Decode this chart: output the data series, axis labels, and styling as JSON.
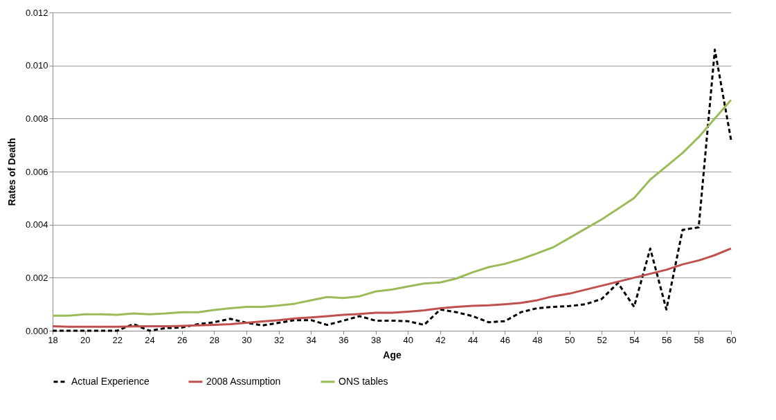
{
  "chart_data": {
    "type": "line",
    "xlabel": "Age",
    "ylabel": "Rates of Death",
    "x": [
      18,
      19,
      20,
      21,
      22,
      23,
      24,
      25,
      26,
      27,
      28,
      29,
      30,
      31,
      32,
      33,
      34,
      35,
      36,
      37,
      38,
      39,
      40,
      41,
      42,
      43,
      44,
      45,
      46,
      47,
      48,
      49,
      50,
      51,
      52,
      53,
      54,
      55,
      56,
      57,
      58,
      59,
      60
    ],
    "series": [
      {
        "name": "Actual Experience",
        "color": "#000000",
        "line_style": "dashed",
        "values": [
          0,
          0,
          0,
          0,
          0,
          0.00025,
          0,
          0.0001,
          0.00012,
          0.00025,
          0.00032,
          0.00045,
          0.0003,
          0.0002,
          0.0003,
          0.0004,
          0.0004,
          0.00022,
          0.00038,
          0.00055,
          0.00038,
          0.00038,
          0.00036,
          0.00022,
          0.0008,
          0.0007,
          0.00055,
          0.00032,
          0.00036,
          0.0007,
          0.00085,
          0.0009,
          0.00093,
          0.001,
          0.0012,
          0.0018,
          0.0009,
          0.0031,
          0.0008,
          0.0038,
          0.0039,
          0.0106,
          0.0072
        ]
      },
      {
        "name": "2008 Assumption",
        "color": "#c0504d",
        "line_style": "solid",
        "values": [
          0.00017,
          0.00015,
          0.00015,
          0.00015,
          0.00015,
          0.00016,
          0.00017,
          0.00017,
          0.00018,
          0.0002,
          0.00022,
          0.00025,
          0.0003,
          0.00035,
          0.0004,
          0.00046,
          0.0005,
          0.00055,
          0.0006,
          0.00063,
          0.00068,
          0.00068,
          0.00072,
          0.00077,
          0.00085,
          0.0009,
          0.00094,
          0.00096,
          0.001,
          0.00105,
          0.00115,
          0.0013,
          0.0014,
          0.00155,
          0.0017,
          0.00185,
          0.002,
          0.00215,
          0.0023,
          0.0025,
          0.00265,
          0.00285,
          0.0031
        ]
      },
      {
        "name": "ONS tables",
        "color": "#9bbb59",
        "line_style": "solid",
        "values": [
          0.00057,
          0.00057,
          0.00062,
          0.00062,
          0.0006,
          0.00065,
          0.00062,
          0.00065,
          0.0007,
          0.0007,
          0.00078,
          0.00085,
          0.0009,
          0.0009,
          0.00095,
          0.00102,
          0.00115,
          0.00127,
          0.00123,
          0.0013,
          0.00148,
          0.00155,
          0.00167,
          0.00178,
          0.00182,
          0.00197,
          0.0022,
          0.0024,
          0.00252,
          0.0027,
          0.00292,
          0.00315,
          0.0035,
          0.00385,
          0.0042,
          0.0046,
          0.005,
          0.0057,
          0.0062,
          0.0067,
          0.0073,
          0.008,
          0.0087
        ]
      }
    ],
    "xlim": [
      18,
      60
    ],
    "xticks": [
      18,
      20,
      22,
      24,
      26,
      28,
      30,
      32,
      34,
      36,
      38,
      40,
      42,
      44,
      46,
      48,
      50,
      52,
      54,
      56,
      58,
      60
    ],
    "ylim": [
      0,
      0.012
    ],
    "yticks": [
      {
        "value": 0,
        "label": "0.000"
      },
      {
        "value": 0.002,
        "label": "0.002"
      },
      {
        "value": 0.004,
        "label": "0.004"
      },
      {
        "value": 0.006,
        "label": "0.006"
      },
      {
        "value": 0.008,
        "label": "0.008"
      },
      {
        "value": 0.01,
        "label": "0.010"
      },
      {
        "value": 0.012,
        "label": "0.012"
      }
    ],
    "grid": "y",
    "legend": "bottom",
    "marker": "none"
  }
}
